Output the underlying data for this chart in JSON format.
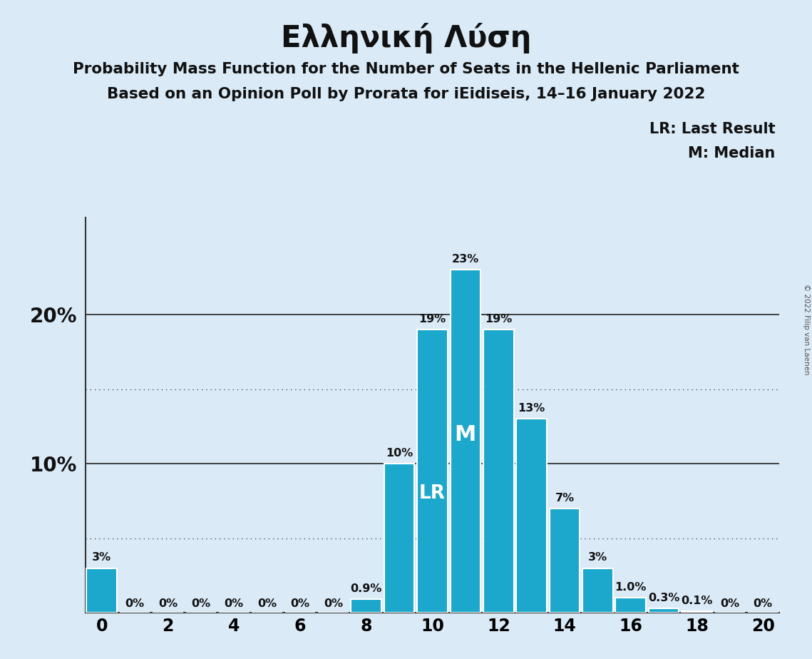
{
  "title": "Ελληνική Λύση",
  "subtitle1": "Probability Mass Function for the Number of Seats in the Hellenic Parliament",
  "subtitle2": "Based on an Opinion Poll by Prorata for iEidiseis, 14–16 January 2022",
  "legend_lr": "LR: Last Result",
  "legend_m": "M: Median",
  "copyright": "© 2022 Filip van Laenen",
  "background_color": "#daeaf7",
  "bar_color": "#1ca8cc",
  "bar_edge_color": "#ffffff",
  "seats": [
    0,
    1,
    2,
    3,
    4,
    5,
    6,
    7,
    8,
    9,
    10,
    11,
    12,
    13,
    14,
    15,
    16,
    17,
    18,
    19,
    20
  ],
  "probabilities": [
    3.0,
    0.0,
    0.0,
    0.0,
    0.0,
    0.0,
    0.0,
    0.0,
    0.9,
    10.0,
    19.0,
    23.0,
    19.0,
    13.0,
    7.0,
    3.0,
    1.0,
    0.3,
    0.1,
    0.0,
    0.0
  ],
  "label_texts": [
    "3%",
    "0%",
    "0%",
    "0%",
    "0%",
    "0%",
    "0%",
    "0%",
    "0.9%",
    "10%",
    "19%",
    "23%",
    "19%",
    "13%",
    "7%",
    "3%",
    "1.0%",
    "0.3%",
    "0.1%",
    "0%",
    "0%"
  ],
  "LR_seat": 10,
  "M_seat": 11,
  "xlim": [
    -0.5,
    20.5
  ],
  "ylim": [
    0,
    26.5
  ],
  "title_fontsize": 30,
  "subtitle_fontsize": 15.5,
  "bar_label_fontsize": 11.5,
  "axis_tick_fontsize": 17,
  "legend_fontsize": 15,
  "marker_fontsize_lr": 19,
  "marker_fontsize_m": 22
}
